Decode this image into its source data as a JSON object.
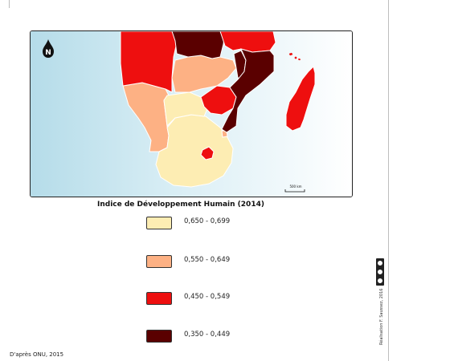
{
  "map": {
    "scale_label": "500 km",
    "north_label": "N",
    "colors": {
      "class_1": "#fdedb3",
      "class_2": "#fdb184",
      "class_3": "#ee0f0f",
      "class_4": "#5a0000",
      "sea": "#b5dce9",
      "land_outside": "#ffffff"
    }
  },
  "legend": {
    "title": "Indice de Développement Humain (2014)",
    "items": [
      {
        "label": "0,650 - 0,699",
        "color": "#fdedb3"
      },
      {
        "label": "0,550 - 0,649",
        "color": "#fdb184"
      },
      {
        "label": "0,450 - 0,549",
        "color": "#ee0f0f"
      },
      {
        "label": "0,350 - 0,449",
        "color": "#5a0000"
      }
    ]
  },
  "source": "D'après ONU, 2015",
  "credit": "Réalisation F. Saussez, 2016",
  "license_icon": "cc-by-nc-sa-icon"
}
